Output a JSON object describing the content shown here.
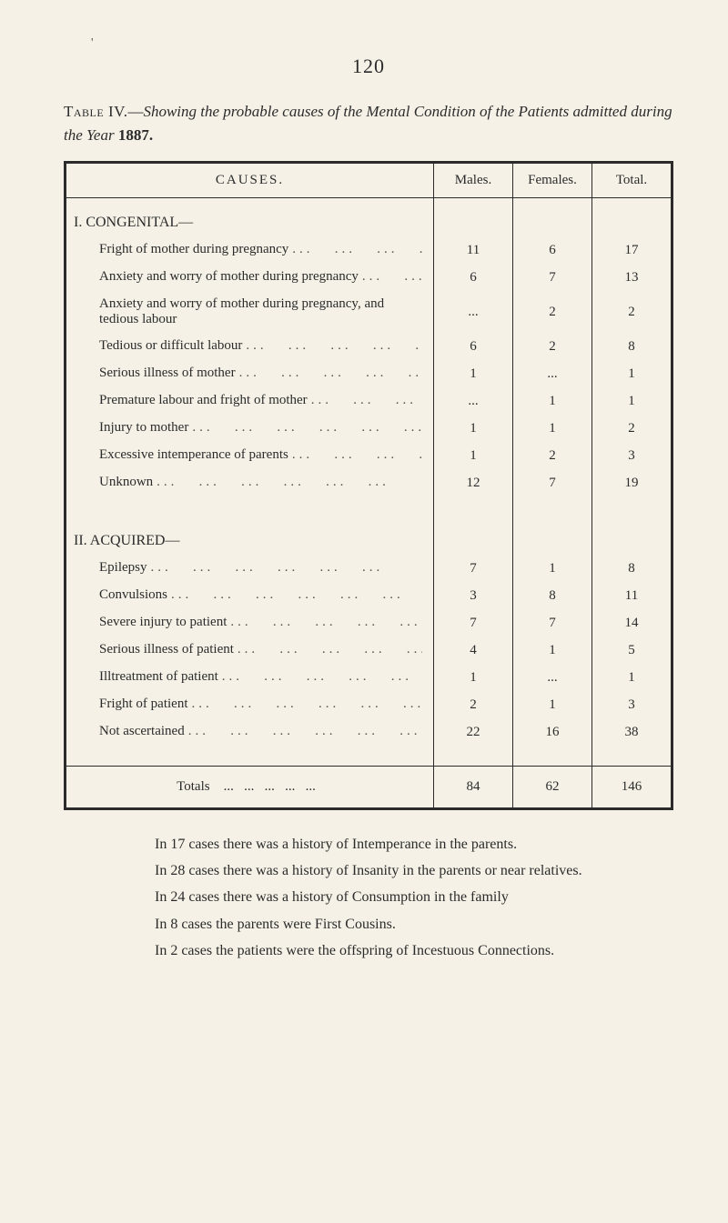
{
  "page_number": "120",
  "caption": {
    "label": "Table IV.",
    "dash": "—",
    "title_italic": "Showing the probable causes of the Mental Condition of the Patients admitted during the Year",
    "year_bold": "1887."
  },
  "table": {
    "headers": {
      "causes": "CAUSES.",
      "males": "Males.",
      "females": "Females.",
      "total": "Total."
    },
    "sections": [
      {
        "title": "I. CONGENITAL—",
        "rows": [
          {
            "cause": "Fright of mother during pregnancy",
            "males": "11",
            "females": "6",
            "total": "17"
          },
          {
            "cause": "Anxiety and worry of mother during pregnancy",
            "males": "6",
            "females": "7",
            "total": "13"
          },
          {
            "cause": "Anxiety and worry of mother during pregnancy, and tedious labour",
            "males": "...",
            "females": "2",
            "total": "2"
          },
          {
            "cause": "Tedious or difficult labour",
            "males": "6",
            "females": "2",
            "total": "8"
          },
          {
            "cause": "Serious illness of mother",
            "males": "1",
            "females": "...",
            "total": "1"
          },
          {
            "cause": "Premature labour and fright of mother",
            "males": "...",
            "females": "1",
            "total": "1"
          },
          {
            "cause": "Injury to mother",
            "males": "1",
            "females": "1",
            "total": "2"
          },
          {
            "cause": "Excessive intemperance of parents",
            "males": "1",
            "females": "2",
            "total": "3"
          },
          {
            "cause": "Unknown",
            "males": "12",
            "females": "7",
            "total": "19"
          }
        ]
      },
      {
        "title": "II. ACQUIRED—",
        "rows": [
          {
            "cause": "Epilepsy",
            "males": "7",
            "females": "1",
            "total": "8"
          },
          {
            "cause": "Convulsions",
            "males": "3",
            "females": "8",
            "total": "11"
          },
          {
            "cause": "Severe injury to patient",
            "males": "7",
            "females": "7",
            "total": "14"
          },
          {
            "cause": "Serious illness of patient",
            "males": "4",
            "females": "1",
            "total": "5"
          },
          {
            "cause": "Illtreatment of patient",
            "males": "1",
            "females": "...",
            "total": "1"
          },
          {
            "cause": "Fright of patient",
            "males": "2",
            "females": "1",
            "total": "3"
          },
          {
            "cause": "Not ascertained",
            "males": "22",
            "females": "16",
            "total": "38"
          }
        ]
      }
    ],
    "totals": {
      "label": "Totals",
      "males": "84",
      "females": "62",
      "total": "146"
    }
  },
  "notes": [
    "In 17 cases there was a history of Intemperance in the parents.",
    "In 28 cases there was a history of Insanity in the parents or near relatives.",
    "In 24 cases there was a history of Consumption in the family",
    "In 8 cases the parents were First Cousins.",
    "In 2 cases the patients were the offspring of Incestuous Connections."
  ],
  "colors": {
    "background": "#f5f1e6",
    "text": "#2b2b2b",
    "border": "#2b2b2b"
  }
}
